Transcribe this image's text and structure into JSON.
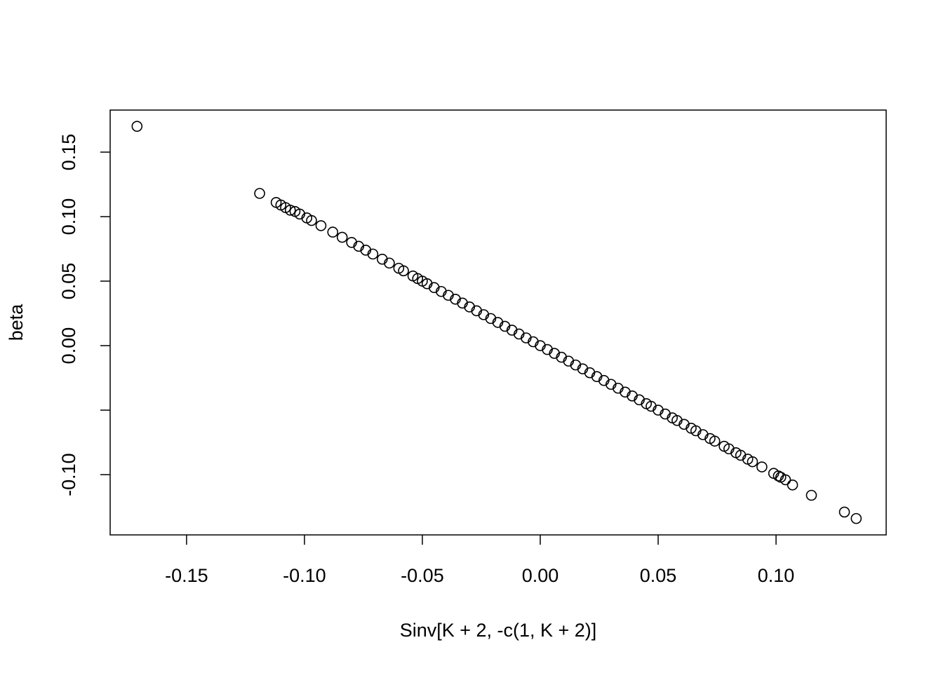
{
  "chart_data": {
    "type": "scatter",
    "xlabel": "Sinv[K + 2, -c(1, K + 2)]",
    "ylabel": "beta",
    "xlim": [
      -0.1824,
      0.1467
    ],
    "ylim": [
      -0.1467,
      0.1826
    ],
    "xticks": [
      {
        "value": -0.15,
        "label": "-0.15"
      },
      {
        "value": -0.1,
        "label": "-0.10"
      },
      {
        "value": -0.05,
        "label": "-0.05"
      },
      {
        "value": 0,
        "label": "0.00"
      },
      {
        "value": 0.05,
        "label": "0.05"
      },
      {
        "value": 0.1,
        "label": "0.10"
      }
    ],
    "yticks": [
      {
        "value": -0.1,
        "label": "-0.10"
      },
      {
        "value": -0.05,
        "label": null
      },
      {
        "value": 0,
        "label": "0.00"
      },
      {
        "value": 0.05,
        "label": "0.05"
      },
      {
        "value": 0.1,
        "label": "0.10"
      },
      {
        "value": 0.15,
        "label": "0.15"
      }
    ],
    "color": "#000000",
    "x": [
      -0.171,
      -0.119,
      -0.112,
      -0.11,
      -0.108,
      -0.106,
      -0.104,
      -0.102,
      -0.099,
      -0.097,
      -0.093,
      -0.088,
      -0.084,
      -0.08,
      -0.077,
      -0.074,
      -0.071,
      -0.067,
      -0.064,
      -0.06,
      -0.058,
      -0.054,
      -0.052,
      -0.05,
      -0.048,
      -0.045,
      -0.042,
      -0.039,
      -0.036,
      -0.033,
      -0.03,
      -0.027,
      -0.024,
      -0.021,
      -0.018,
      -0.015,
      -0.012,
      -0.009,
      -0.006,
      -0.003,
      0,
      0.003,
      0.006,
      0.009,
      0.012,
      0.015,
      0.018,
      0.021,
      0.024,
      0.027,
      0.03,
      0.033,
      0.036,
      0.039,
      0.042,
      0.045,
      0.047,
      0.05,
      0.053,
      0.056,
      0.058,
      0.061,
      0.064,
      0.066,
      0.069,
      0.072,
      0.074,
      0.078,
      0.08,
      0.083,
      0.085,
      0.088,
      0.09,
      0.094,
      0.099,
      0.101,
      0.102,
      0.104,
      0.107,
      0.115,
      0.129,
      0.134
    ],
    "values": [
      0.17,
      0.118,
      0.111,
      0.109,
      0.107,
      0.105,
      0.104,
      0.102,
      0.099,
      0.097,
      0.093,
      0.088,
      0.084,
      0.08,
      0.077,
      0.074,
      0.071,
      0.067,
      0.064,
      0.06,
      0.058,
      0.054,
      0.052,
      0.05,
      0.048,
      0.045,
      0.042,
      0.039,
      0.036,
      0.033,
      0.03,
      0.027,
      0.024,
      0.021,
      0.018,
      0.015,
      0.012,
      0.009,
      0.006,
      0.003,
      0,
      -0.003,
      -0.006,
      -0.009,
      -0.012,
      -0.015,
      -0.018,
      -0.021,
      -0.024,
      -0.027,
      -0.03,
      -0.033,
      -0.036,
      -0.039,
      -0.042,
      -0.045,
      -0.047,
      -0.05,
      -0.053,
      -0.056,
      -0.058,
      -0.061,
      -0.064,
      -0.066,
      -0.069,
      -0.072,
      -0.074,
      -0.078,
      -0.08,
      -0.083,
      -0.085,
      -0.088,
      -0.09,
      -0.094,
      -0.099,
      -0.101,
      -0.102,
      -0.104,
      -0.108,
      -0.116,
      -0.129,
      -0.134
    ]
  }
}
